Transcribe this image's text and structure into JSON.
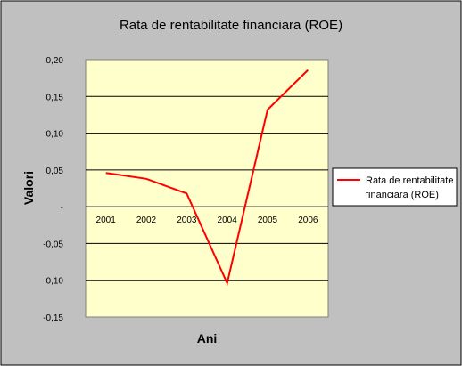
{
  "chart_data": {
    "type": "line",
    "title": "Rata de rentabilitate financiara (ROE)",
    "xlabel": "Ani",
    "ylabel": "Valori",
    "categories": [
      "2001",
      "2002",
      "2003",
      "2004",
      "2005",
      "2006"
    ],
    "series": [
      {
        "name": "Rata de rentabilitate financiara (ROE)",
        "legend_lines": [
          "Rata de rentabilitate",
          "financiara (ROE)"
        ],
        "values": [
          0.046,
          0.038,
          0.018,
          -0.104,
          0.132,
          0.186
        ],
        "color": "#ff0000"
      }
    ],
    "ylim": [
      -0.15,
      0.2
    ],
    "yticks": [
      {
        "value": 0.2,
        "label": "0,20"
      },
      {
        "value": 0.15,
        "label": "0,15"
      },
      {
        "value": 0.1,
        "label": "0,10"
      },
      {
        "value": 0.05,
        "label": "0,05"
      },
      {
        "value": 0.0,
        "label": "-"
      },
      {
        "value": -0.05,
        "label": "-0,05"
      },
      {
        "value": -0.1,
        "label": "-0,10"
      },
      {
        "value": -0.15,
        "label": "-0,15"
      }
    ],
    "grid": true,
    "legend_position": "right",
    "colors": {
      "chart_area": "#c0c0c0",
      "plot_area": "#ffffcc",
      "gridline": "#000000"
    }
  }
}
